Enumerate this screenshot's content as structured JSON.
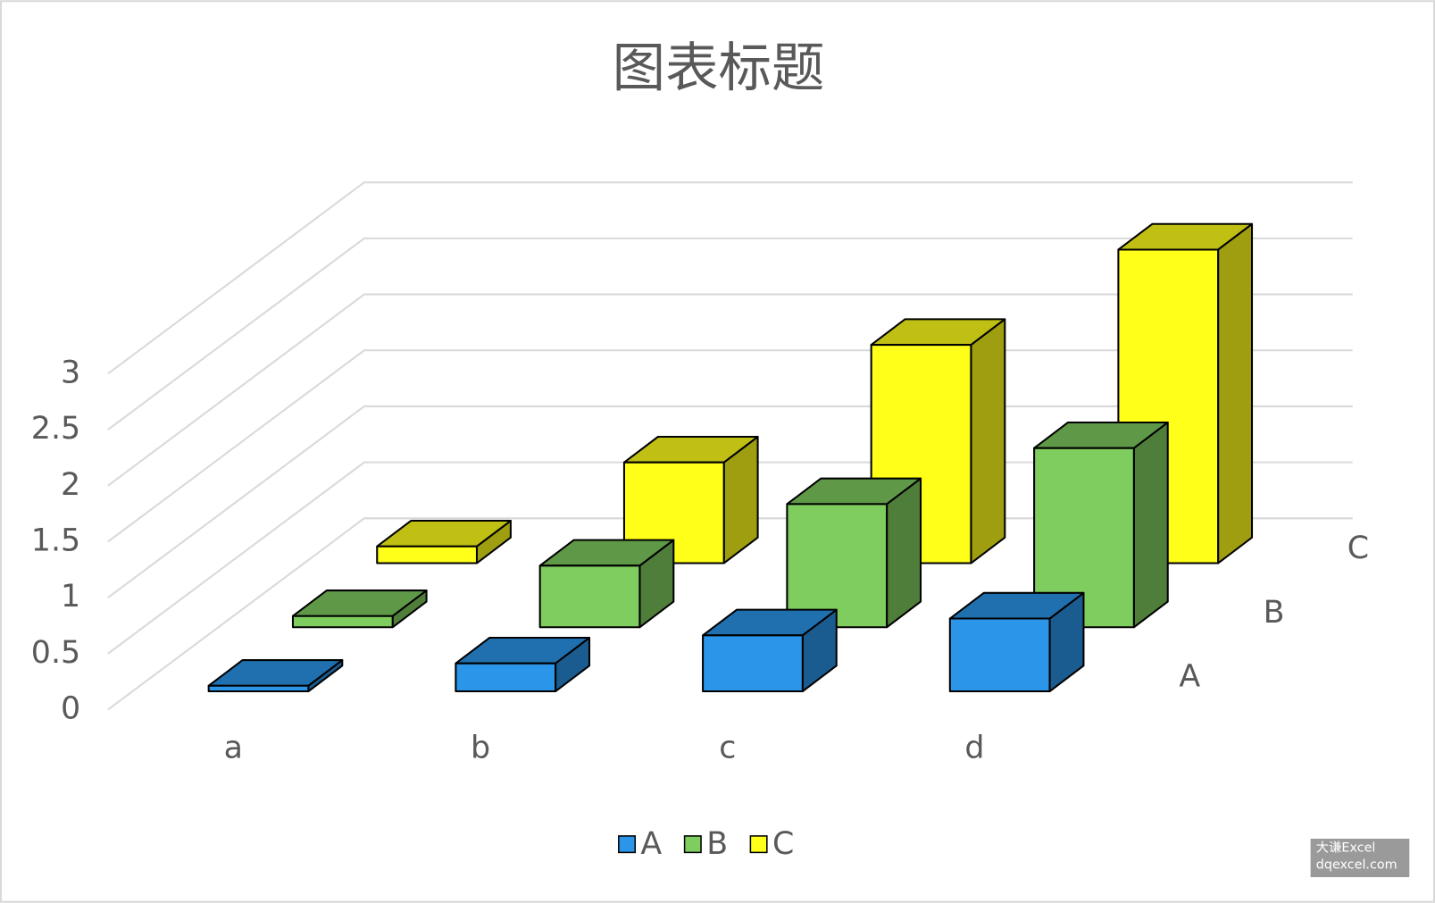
{
  "chart_data": {
    "type": "bar3d",
    "title": "图表标题",
    "categories": [
      "a",
      "b",
      "c",
      "d"
    ],
    "series": [
      {
        "name": "A",
        "color": "#2b95e9",
        "values": [
          0.05,
          0.25,
          0.5,
          0.65
        ]
      },
      {
        "name": "B",
        "color": "#7fcc5f",
        "values": [
          0.1,
          0.55,
          1.1,
          1.6
        ]
      },
      {
        "name": "C",
        "color": "#ffff1a",
        "values": [
          0.15,
          0.9,
          1.95,
          2.8
        ]
      }
    ],
    "ylim": [
      0,
      3
    ],
    "yticks": [
      0,
      0.5,
      1,
      1.5,
      2,
      2.5,
      3
    ],
    "grid": true,
    "legend": "bottom"
  },
  "watermark": [
    "大谦Excel",
    "dqexcel.com"
  ]
}
